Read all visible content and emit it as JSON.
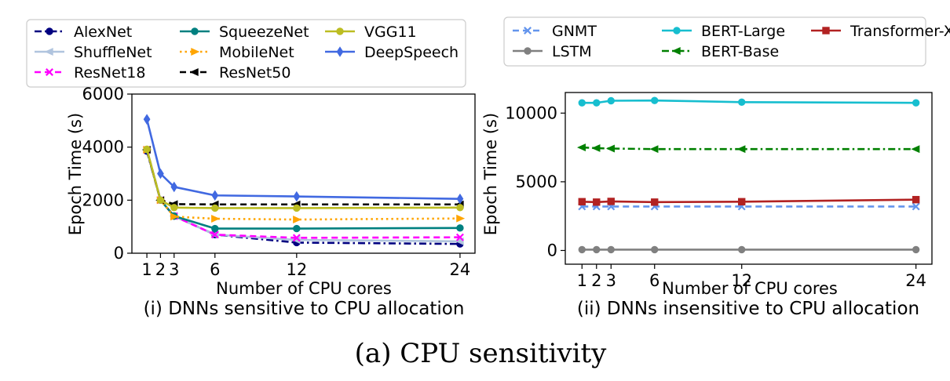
{
  "figure_caption": "(a) CPU sensitivity",
  "chart_data": [
    {
      "type": "line",
      "subtitle": "(i) DNNs sensitive to CPU allocation",
      "xlabel": "Number of CPU cores",
      "ylabel": "Epoch Time (s)",
      "x": [
        1,
        2,
        3,
        6,
        12,
        24
      ],
      "xticks": [
        "1",
        "2",
        "3",
        "6",
        "12",
        "24"
      ],
      "ylim": [
        0,
        6000
      ],
      "yticks": [
        "0",
        "2000",
        "4000",
        "6000"
      ],
      "legend_placement": "top",
      "series": [
        {
          "name": "AlexNet",
          "color": "#000080",
          "dash": "dashdot",
          "marker": "circle",
          "values": [
            3850,
            2000,
            1400,
            700,
            400,
            350
          ]
        },
        {
          "name": "ShuffleNet",
          "color": "#b0c4de",
          "dash": "solid",
          "marker": "triangle-left",
          "values": [
            3900,
            2000,
            1400,
            700,
            500,
            450
          ]
        },
        {
          "name": "ResNet18",
          "color": "#ff00ff",
          "dash": "dashed",
          "marker": "x",
          "values": [
            3900,
            2000,
            1400,
            700,
            580,
            600
          ]
        },
        {
          "name": "SqueezeNet",
          "color": "#008080",
          "dash": "solid",
          "marker": "circle",
          "values": [
            3900,
            2000,
            1400,
            930,
            930,
            950
          ]
        },
        {
          "name": "MobileNet",
          "color": "#ffa500",
          "dash": "dotted",
          "marker": "triangle-right",
          "values": [
            3900,
            2000,
            1380,
            1300,
            1270,
            1310
          ]
        },
        {
          "name": "ResNet50",
          "color": "#000000",
          "dash": "dashed",
          "marker": "triangle-left",
          "values": [
            3900,
            2000,
            1850,
            1840,
            1840,
            1840
          ]
        },
        {
          "name": "VGG11",
          "color": "#bcbd22",
          "dash": "solid",
          "marker": "circle",
          "values": [
            3920,
            2000,
            1720,
            1700,
            1700,
            1720
          ]
        },
        {
          "name": "DeepSpeech",
          "color": "#4169e1",
          "dash": "solid",
          "marker": "diamond",
          "values": [
            5050,
            3000,
            2500,
            2180,
            2140,
            2050
          ]
        }
      ]
    },
    {
      "type": "line",
      "subtitle": "(ii) DNNs insensitive to CPU allocation",
      "xlabel": "Number of CPU cores",
      "ylabel": "Epoch Time (s)",
      "x": [
        1,
        2,
        3,
        6,
        12,
        24
      ],
      "xticks": [
        "1",
        "2",
        "3",
        "6",
        "12",
        "24"
      ],
      "ylim": [
        -1000,
        11500
      ],
      "yticks": [
        "0",
        "5000",
        "10000"
      ],
      "legend_placement": "top",
      "series": [
        {
          "name": "GNMT",
          "color": "#6495ed",
          "dash": "dashed",
          "marker": "x",
          "values": [
            3200,
            3200,
            3200,
            3200,
            3200,
            3200
          ]
        },
        {
          "name": "LSTM",
          "color": "#808080",
          "dash": "solid",
          "marker": "circle",
          "values": [
            60,
            60,
            60,
            60,
            60,
            60
          ]
        },
        {
          "name": "BERT-Large",
          "color": "#17becf",
          "dash": "solid",
          "marker": "circle",
          "values": [
            10750,
            10750,
            10900,
            10920,
            10800,
            10750
          ]
        },
        {
          "name": "BERT-Base",
          "color": "#008000",
          "dash": "dashdot",
          "marker": "triangle-left",
          "values": [
            7500,
            7450,
            7420,
            7380,
            7380,
            7380
          ]
        },
        {
          "name": "Transformer-XL",
          "color": "#b22222",
          "dash": "solid",
          "marker": "square",
          "values": [
            3550,
            3520,
            3570,
            3520,
            3550,
            3700
          ]
        }
      ]
    }
  ]
}
